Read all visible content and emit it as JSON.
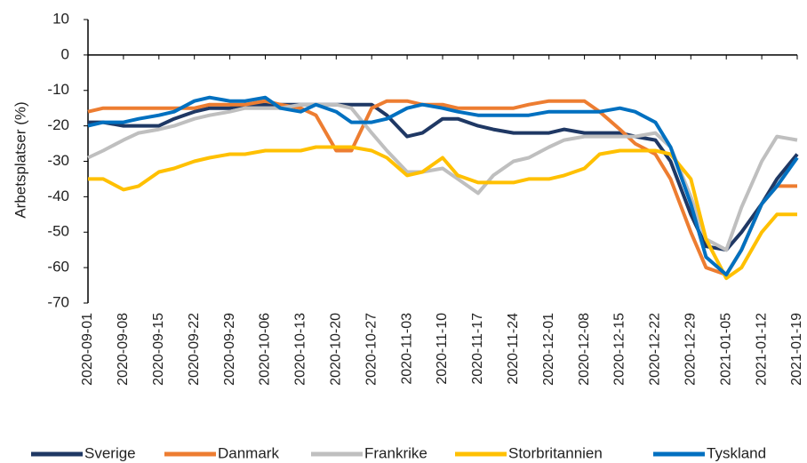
{
  "chart_data": {
    "type": "line",
    "y_label": "Arbetsplatser (%)",
    "x": [
      "2020-09-01",
      "2020-09-04",
      "2020-09-08",
      "2020-09-11",
      "2020-09-15",
      "2020-09-18",
      "2020-09-22",
      "2020-09-25",
      "2020-09-29",
      "2020-10-02",
      "2020-10-06",
      "2020-10-09",
      "2020-10-13",
      "2020-10-16",
      "2020-10-20",
      "2020-10-23",
      "2020-10-27",
      "2020-10-30",
      "2020-11-03",
      "2020-11-06",
      "2020-11-10",
      "2020-11-13",
      "2020-11-17",
      "2020-11-20",
      "2020-11-24",
      "2020-11-27",
      "2020-12-01",
      "2020-12-04",
      "2020-12-08",
      "2020-12-11",
      "2020-12-15",
      "2020-12-18",
      "2020-12-22",
      "2020-12-25",
      "2020-12-29",
      "2021-01-01",
      "2021-01-05",
      "2021-01-08",
      "2021-01-12",
      "2021-01-15",
      "2021-01-19"
    ],
    "xlim": [
      "2020-09-01",
      "2021-01-19"
    ],
    "xticks": [
      "2020-09-01",
      "2020-09-08",
      "2020-09-15",
      "2020-09-22",
      "2020-09-29",
      "2020-10-06",
      "2020-10-13",
      "2020-10-20",
      "2020-10-27",
      "2020-11-03",
      "2020-11-10",
      "2020-11-17",
      "2020-11-24",
      "2020-12-01",
      "2020-12-08",
      "2020-12-15",
      "2020-12-22",
      "2020-12-29",
      "2021-01-05",
      "2021-01-12",
      "2021-01-19"
    ],
    "ylim": [
      -70,
      10
    ],
    "yticks": [
      -70,
      -60,
      -50,
      -40,
      -30,
      -20,
      -10,
      0,
      10
    ],
    "grid": false,
    "legend": "bottom",
    "series": [
      {
        "name": "Sverige",
        "color": "#1f3864",
        "values": [
          -19,
          -19,
          -20,
          -20,
          -20,
          -18,
          -16,
          -15,
          -15,
          -14,
          -14,
          -14,
          -14,
          -14,
          -14,
          -14,
          -14,
          -17,
          -23,
          -22,
          -18,
          -18,
          -20,
          -21,
          -22,
          -22,
          -22,
          -21,
          -22,
          -22,
          -22,
          -23,
          -24,
          -30,
          -45,
          -54,
          -55,
          -50,
          -42,
          -35,
          -28
        ]
      },
      {
        "name": "Danmark",
        "color": "#ed7d31",
        "values": [
          -16,
          -15,
          -15,
          -15,
          -15,
          -15,
          -15,
          -14,
          -14,
          -14,
          -13,
          -14,
          -15,
          -17,
          -27,
          -27,
          -15,
          -13,
          -13,
          -14,
          -14,
          -15,
          -15,
          -15,
          -15,
          -14,
          -13,
          -13,
          -13,
          -16,
          -21,
          -25,
          -28,
          -35,
          -50,
          -60,
          -62,
          -55,
          -42,
          -37,
          -37
        ]
      },
      {
        "name": "Frankrike",
        "color": "#bfbfbf",
        "values": [
          -29,
          -27,
          -24,
          -22,
          -21,
          -20,
          -18,
          -17,
          -16,
          -15,
          -15,
          -15,
          -14,
          -14,
          -14,
          -15,
          -22,
          -27,
          -33,
          -33,
          -32,
          -35,
          -39,
          -34,
          -30,
          -29,
          -26,
          -24,
          -23,
          -23,
          -23,
          -23,
          -22,
          -26,
          -40,
          -52,
          -55,
          -43,
          -30,
          -23,
          -24
        ]
      },
      {
        "name": "Storbritannien",
        "color": "#ffc000",
        "values": [
          -35,
          -35,
          -38,
          -37,
          -33,
          -32,
          -30,
          -29,
          -28,
          -28,
          -27,
          -27,
          -27,
          -26,
          -26,
          -26,
          -27,
          -29,
          -34,
          -33,
          -29,
          -34,
          -36,
          -36,
          -36,
          -35,
          -35,
          -34,
          -32,
          -28,
          -27,
          -27,
          -27,
          -28,
          -35,
          -52,
          -63,
          -60,
          -50,
          -45,
          -45
        ]
      },
      {
        "name": "Tyskland",
        "color": "#0070c0",
        "values": [
          -20,
          -19,
          -19,
          -18,
          -17,
          -16,
          -13,
          -12,
          -13,
          -13,
          -12,
          -15,
          -16,
          -14,
          -16,
          -19,
          -19,
          -18,
          -15,
          -14,
          -15,
          -16,
          -17,
          -17,
          -17,
          -17,
          -16,
          -16,
          -16,
          -16,
          -15,
          -16,
          -19,
          -26,
          -42,
          -57,
          -62,
          -55,
          -42,
          -37,
          -29
        ]
      }
    ]
  }
}
